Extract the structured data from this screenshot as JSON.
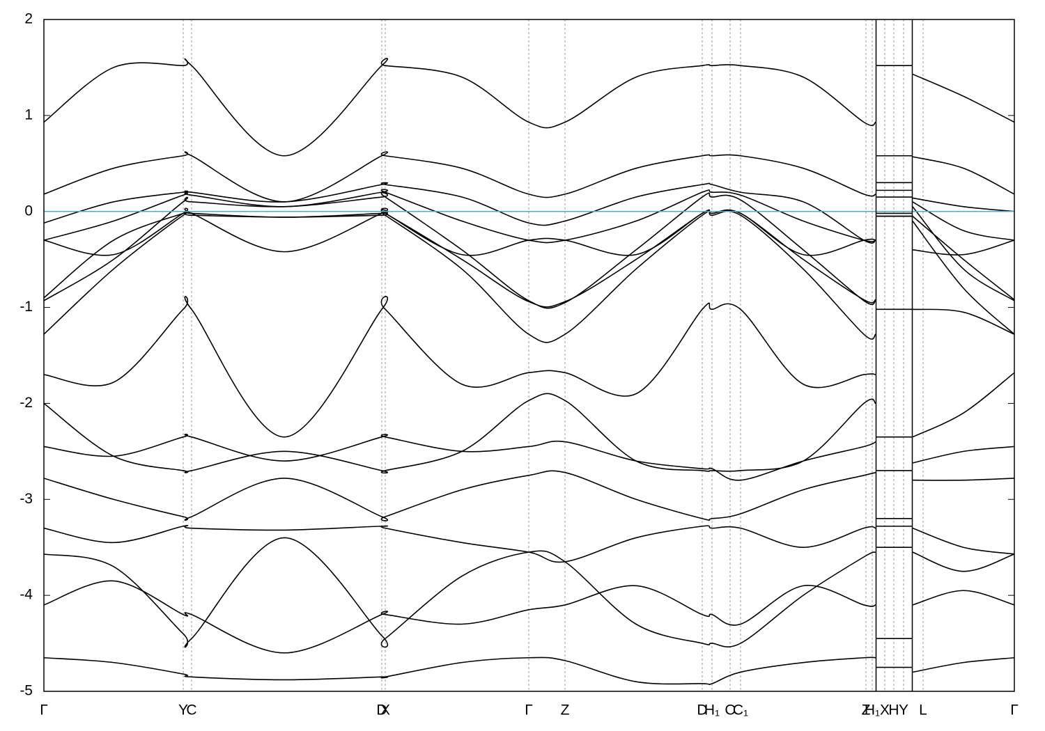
{
  "chart_data": {
    "type": "line",
    "x": [
      0,
      0.1,
      0.2,
      0.212,
      0.345,
      0.485,
      0.49,
      0.6,
      0.696,
      0.748,
      0.85,
      0.945,
      0.959,
      1.0,
      1.09,
      1.177,
      1.194,
      1.1945,
      1.195,
      1.246,
      1.2465,
      1.247,
      1.32,
      1.393
    ],
    "series": [
      {
        "color": "#000000",
        "values": [
          0.93,
          1.5,
          1.52,
          1.52,
          0.58,
          1.52,
          1.52,
          1.4,
          0.93,
          0.93,
          1.4,
          1.52,
          1.52,
          1.52,
          1.4,
          0.93,
          0.93,
          null,
          1.52,
          1.52,
          null,
          1.43,
          1.2,
          0.93
        ]
      },
      {
        "color": "#000000",
        "values": [
          0.18,
          0.45,
          0.58,
          0.58,
          0.1,
          0.58,
          0.58,
          0.45,
          0.18,
          0.18,
          0.45,
          0.58,
          0.58,
          0.58,
          0.45,
          0.18,
          0.18,
          null,
          0.58,
          0.58,
          null,
          0.57,
          0.45,
          0.18
        ]
      },
      {
        "color": "#000000",
        "values": [
          -0.12,
          0.1,
          0.2,
          0.2,
          0.1,
          0.28,
          0.28,
          0.15,
          -0.12,
          -0.1,
          0.15,
          0.28,
          0.28,
          0.2,
          0.1,
          -0.3,
          -0.3,
          null,
          0.3,
          0.3,
          null,
          0.14,
          0.05,
          0.0
        ]
      },
      {
        "color": "#000000",
        "values": [
          -0.3,
          -0.1,
          0.17,
          0.17,
          0.05,
          0.2,
          0.2,
          -0.1,
          -0.3,
          -0.3,
          -0.1,
          0.2,
          0.2,
          0.17,
          -0.1,
          -0.3,
          -0.3,
          null,
          0.22,
          0.22,
          null,
          0.1,
          -0.2,
          -0.3
        ]
      },
      {
        "color": "#000000",
        "values": [
          -0.93,
          -0.5,
          0.1,
          0.1,
          0.05,
          0.15,
          0.15,
          -0.4,
          -0.93,
          -0.95,
          -0.4,
          0.15,
          0.15,
          0.12,
          -0.4,
          -0.93,
          -0.93,
          null,
          0.15,
          0.15,
          null,
          0.05,
          -0.6,
          -0.93
        ]
      },
      {
        "color": "#000000",
        "values": [
          -0.9,
          -0.3,
          -0.02,
          -0.02,
          -0.06,
          -0.02,
          -0.02,
          -0.5,
          -0.94,
          -0.94,
          -0.5,
          -0.02,
          -0.02,
          -0.02,
          -0.5,
          -0.92,
          -0.92,
          null,
          -0.02,
          -0.02,
          null,
          -0.05,
          -0.5,
          -0.92
        ]
      },
      {
        "color": "#000000",
        "values": [
          -1.28,
          -0.6,
          -0.04,
          -0.04,
          -0.06,
          -0.04,
          -0.04,
          -0.6,
          -1.28,
          -1.28,
          -0.6,
          -0.04,
          -0.04,
          -0.04,
          -0.6,
          -1.28,
          -1.28,
          null,
          -0.05,
          -0.05,
          null,
          -0.1,
          -0.8,
          -1.28
        ]
      },
      {
        "color": "#000000",
        "values": [
          -0.3,
          -0.45,
          -0.02,
          -0.02,
          -0.42,
          -0.02,
          -0.02,
          -0.45,
          -0.3,
          -0.3,
          -0.45,
          -0.02,
          -0.02,
          -0.02,
          -0.45,
          -0.3,
          -0.3,
          null,
          -0.05,
          -0.05,
          null,
          -0.4,
          -0.45,
          -0.3
        ]
      },
      {
        "color": "#000000",
        "values": [
          -1.7,
          -1.78,
          -1.02,
          -1.02,
          -2.35,
          -1.02,
          -1.02,
          -1.8,
          -1.68,
          -1.68,
          -1.9,
          -1.02,
          -1.02,
          -1.02,
          -1.8,
          -1.7,
          -1.7,
          null,
          -1.02,
          -1.02,
          null,
          -1.02,
          -1.05,
          -1.28
        ]
      },
      {
        "color": "#000000",
        "values": [
          -2.0,
          -2.55,
          -2.7,
          -2.7,
          -2.5,
          -2.7,
          -2.7,
          -2.5,
          -1.97,
          -1.97,
          -2.6,
          -2.7,
          -2.7,
          -2.7,
          -2.6,
          -2.0,
          -2.0,
          null,
          -2.35,
          -2.35,
          null,
          -2.35,
          -2.1,
          -1.68
        ]
      },
      {
        "color": "#000000",
        "values": [
          -2.45,
          -2.55,
          -2.35,
          -2.35,
          -2.6,
          -2.35,
          -2.35,
          -2.5,
          -2.45,
          -2.4,
          -2.6,
          -2.68,
          -2.68,
          -2.8,
          -2.6,
          -2.45,
          -2.4,
          null,
          -2.7,
          -2.7,
          null,
          -2.62,
          -2.5,
          -2.45
        ]
      },
      {
        "color": "#000000",
        "values": [
          -2.78,
          -3.0,
          -3.18,
          -3.18,
          -2.78,
          -3.18,
          -3.18,
          -2.9,
          -2.75,
          -2.72,
          -3.0,
          -3.2,
          -3.2,
          -3.15,
          -2.9,
          -2.75,
          -2.72,
          null,
          -3.2,
          -3.2,
          null,
          -2.8,
          -2.8,
          -2.78
        ]
      },
      {
        "color": "#000000",
        "values": [
          -3.3,
          -3.45,
          -3.28,
          -3.3,
          -3.32,
          -3.28,
          -3.3,
          -3.45,
          -3.55,
          -3.65,
          -3.4,
          -3.28,
          -3.3,
          -3.3,
          -3.5,
          -3.3,
          -3.3,
          null,
          -3.28,
          -3.28,
          null,
          -3.3,
          -3.5,
          -3.57
        ]
      },
      {
        "color": "#000000",
        "values": [
          -3.57,
          -3.7,
          -4.4,
          -4.45,
          -3.4,
          -4.42,
          -4.45,
          -3.8,
          -3.55,
          -3.65,
          -4.3,
          -4.5,
          -4.5,
          -4.5,
          -4.0,
          -3.6,
          -3.55,
          null,
          -3.5,
          -3.5,
          null,
          -3.55,
          -3.75,
          -3.57
        ]
      },
      {
        "color": "#000000",
        "values": [
          -4.1,
          -3.85,
          -4.2,
          -4.2,
          -4.6,
          -4.2,
          -4.2,
          -4.3,
          -4.15,
          -4.1,
          -3.9,
          -4.2,
          -4.2,
          -4.3,
          -3.9,
          -4.1,
          -4.1,
          null,
          -4.45,
          -4.45,
          null,
          -4.1,
          -3.95,
          -4.1
        ]
      },
      {
        "color": "#000000",
        "values": [
          -4.65,
          -4.7,
          -4.82,
          -4.85,
          -4.88,
          -4.85,
          -4.85,
          -4.7,
          -4.65,
          -4.68,
          -4.9,
          -4.92,
          -4.92,
          -4.8,
          -4.7,
          -4.65,
          -4.65,
          null,
          -4.75,
          -4.75,
          null,
          -4.8,
          -4.7,
          -4.65
        ]
      }
    ],
    "xlim": [
      0,
      1.393
    ],
    "xticks": [
      {
        "value": 0,
        "label": "Γ"
      },
      {
        "value": 0.2,
        "label": "Y"
      },
      {
        "value": 0.212,
        "label": "C"
      },
      {
        "value": 0.485,
        "label": "D"
      },
      {
        "value": 0.49,
        "label": "X"
      },
      {
        "value": 0.696,
        "label": "Γ"
      },
      {
        "value": 0.748,
        "label": "Z"
      },
      {
        "value": 0.945,
        "label": "D"
      },
      {
        "value": 0.959,
        "label": "H₁"
      },
      {
        "value": 0.985,
        "label": "C"
      },
      {
        "value": 1.0,
        "label": "C₁"
      },
      {
        "value": 1.18,
        "label": "Z"
      },
      {
        "value": 1.189,
        "label": "H₁"
      },
      {
        "value": 1.207,
        "label": "X"
      },
      {
        "value": 1.22,
        "label": "H"
      },
      {
        "value": 1.234,
        "label": "Y"
      },
      {
        "value": 1.262,
        "label": "L"
      },
      {
        "value": 1.393,
        "label": "Γ"
      }
    ],
    "ylim": [
      -5,
      2
    ],
    "yticks": [
      -5,
      -4,
      -3,
      -2,
      -1,
      0,
      1,
      2
    ],
    "grid": true,
    "panel_breaks": [
      1.1945,
      1.2465
    ],
    "fermi_level": {
      "value": 0,
      "color": "#5ba8c4"
    }
  }
}
